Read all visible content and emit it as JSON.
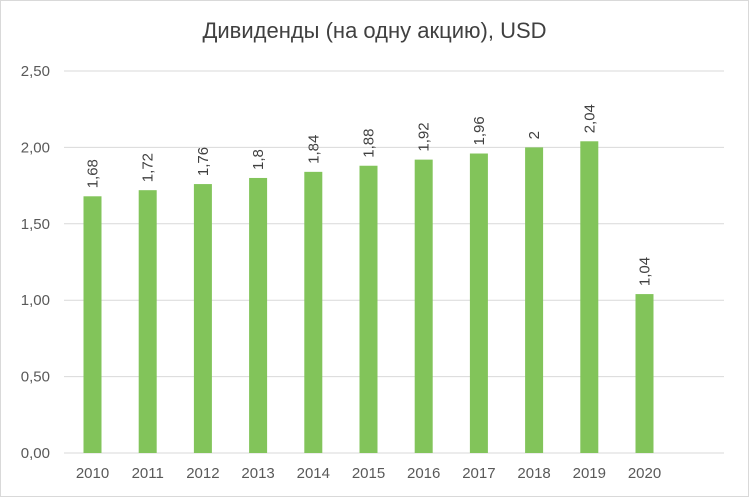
{
  "chart_data": {
    "type": "bar",
    "title": "Дивиденды (на одну акцию), USD",
    "xlabel": "",
    "ylabel": "",
    "categories": [
      "2010",
      "2011",
      "2012",
      "2013",
      "2014",
      "2015",
      "2016",
      "2017",
      "2018",
      "2019",
      "2020"
    ],
    "values": [
      1.68,
      1.72,
      1.76,
      1.8,
      1.84,
      1.88,
      1.92,
      1.96,
      2,
      2.04,
      1.04
    ],
    "data_labels": [
      "1,68",
      "1,72",
      "1,76",
      "1,8",
      "1,84",
      "1,88",
      "1,92",
      "1,96",
      "2",
      "2,04",
      "1,04"
    ],
    "ylim": [
      0,
      2.5
    ],
    "yticks": [
      0,
      0.5,
      1,
      1.5,
      2,
      2.5
    ],
    "ytick_labels": [
      "0,00",
      "0,50",
      "1,00",
      "1,50",
      "2,00",
      "2,50"
    ],
    "grid": true,
    "legend": "none",
    "bar_color": "#82c45a",
    "grid_color": "#d9d9d9"
  }
}
